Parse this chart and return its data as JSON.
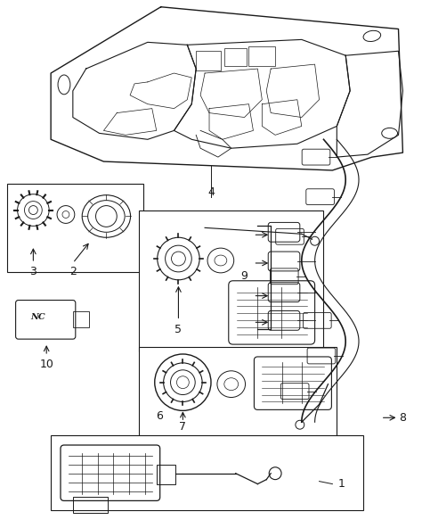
{
  "background_color": "#ffffff",
  "line_color": "#1a1a1a",
  "fig_width": 4.74,
  "fig_height": 5.83,
  "dpi": 100
}
